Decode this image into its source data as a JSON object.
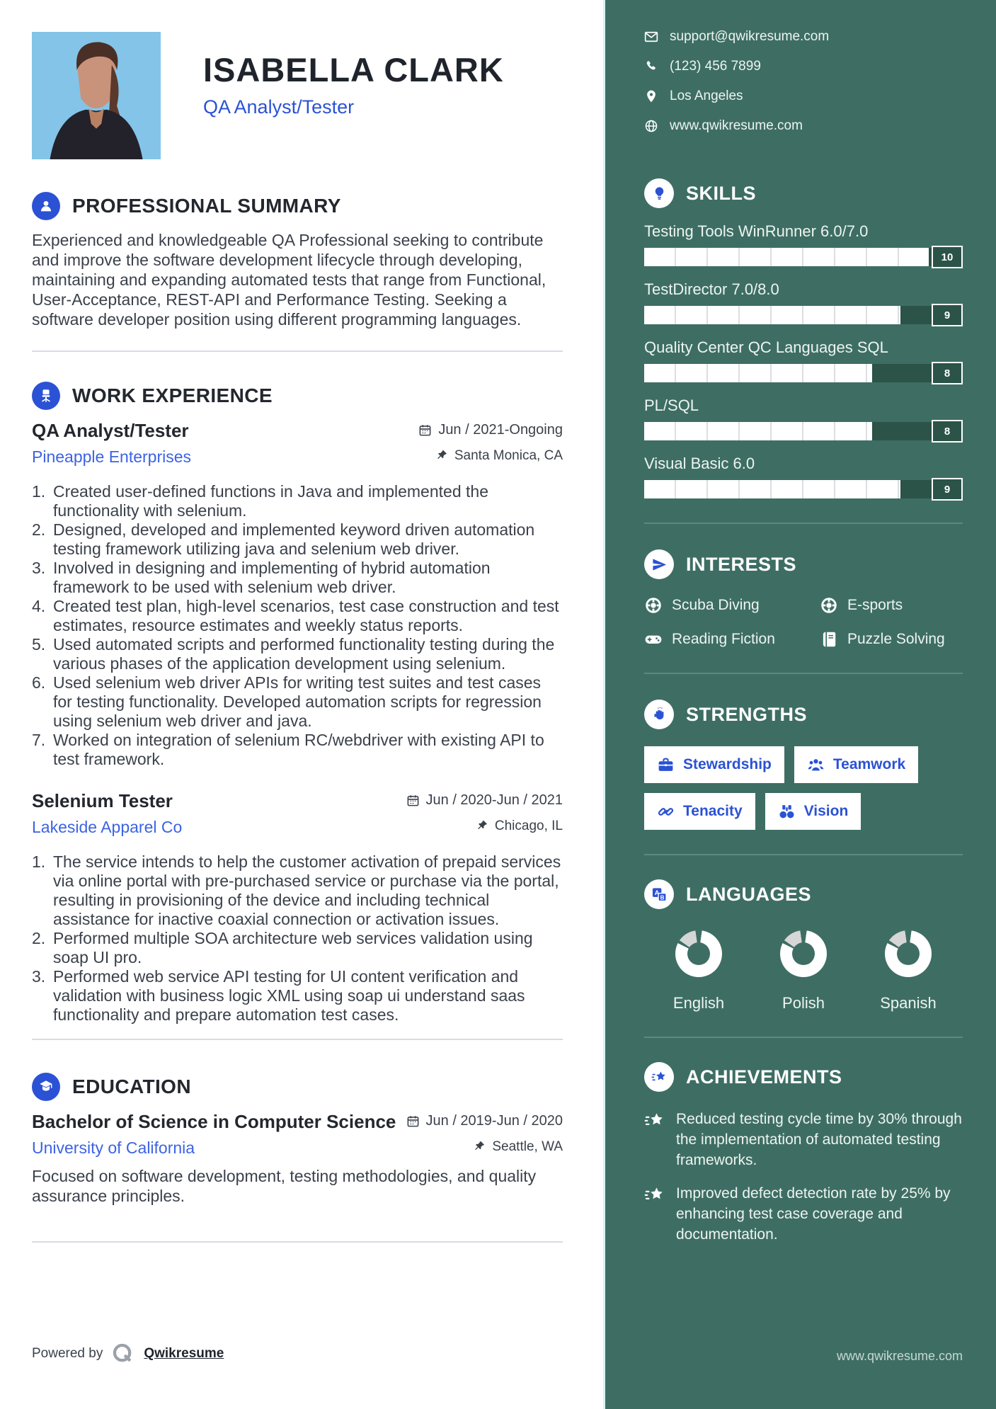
{
  "header": {
    "name": "ISABELLA CLARK",
    "title": "QA Analyst/Tester"
  },
  "summary": {
    "title": "PROFESSIONAL SUMMARY",
    "text": "Experienced and knowledgeable QA Professional seeking to contribute and improve the software development lifecycle through developing, maintaining and expanding automated tests that range from Functional, User-Acceptance, REST-API and Performance Testing. Seeking a software developer position using different programming languages."
  },
  "work": {
    "title": "WORK EXPERIENCE",
    "jobs": [
      {
        "title": "QA Analyst/Tester",
        "company": "Pineapple Enterprises",
        "dates": "Jun / 2021-Ongoing",
        "location": "Santa Monica, CA",
        "bullets": [
          "Created user-defined functions in Java and implemented the functionality with selenium.",
          "Designed, developed and implemented keyword driven automation testing framework utilizing java and selenium web driver.",
          "Involved in designing and implementing of hybrid automation framework to be used with selenium web driver.",
          "Created test plan, high-level scenarios, test case construction and test estimates, resource estimates and weekly status reports.",
          "Used automated scripts and performed functionality testing during the various phases of the application development using selenium.",
          "Used selenium web driver APIs for writing test suites and test cases for testing functionality. Developed automation scripts for regression using selenium web driver and java.",
          "Worked on integration of selenium RC/webdriver with existing API to test framework."
        ]
      },
      {
        "title": "Selenium Tester",
        "company": "Lakeside Apparel Co",
        "dates": "Jun / 2020-Jun / 2021",
        "location": "Chicago, IL",
        "bullets": [
          "The service intends to help the customer activation of prepaid services via online portal with pre-purchased service or purchase via the portal, resulting in provisioning of the device and including technical assistance for inactive coaxial connection or activation issues.",
          "Performed multiple SOA architecture web services validation using soap UI pro.",
          "Performed web service API testing for UI content verification and validation with business logic XML using soap ui understand saas functionality and prepare automation test cases."
        ]
      }
    ]
  },
  "education": {
    "title": "EDUCATION",
    "degree": "Bachelor of Science in Computer Science",
    "school": "University of California",
    "dates": "Jun / 2019-Jun / 2020",
    "location": "Seattle, WA",
    "description": "Focused on software development, testing methodologies, and quality assurance principles."
  },
  "sidebar": {
    "contact": {
      "email": "support@qwikresume.com",
      "phone": "(123) 456 7899",
      "location": "Los Angeles",
      "website": "www.qwikresume.com"
    },
    "skills": {
      "title": "SKILLS",
      "max": 10,
      "items": [
        {
          "name": "Testing Tools WinRunner 6.0/7.0",
          "level": 10
        },
        {
          "name": "TestDirector 7.0/8.0",
          "level": 9
        },
        {
          "name": "Quality Center QC Languages SQL",
          "level": 8
        },
        {
          "name": "PL/SQL",
          "level": 8
        },
        {
          "name": "Visual Basic 6.0",
          "level": 9
        }
      ]
    },
    "interests": {
      "title": "INTERESTS",
      "items": [
        {
          "label": "Scuba Diving",
          "icon": "helm-icon"
        },
        {
          "label": "E-sports",
          "icon": "helm-icon"
        },
        {
          "label": "Reading Fiction",
          "icon": "gamepad-icon"
        },
        {
          "label": "Puzzle Solving",
          "icon": "book-icon"
        }
      ]
    },
    "strengths": {
      "title": "STRENGTHS",
      "items": [
        {
          "label": "Stewardship",
          "icon": "briefcase-icon"
        },
        {
          "label": "Teamwork",
          "icon": "team-icon"
        },
        {
          "label": "Tenacity",
          "icon": "chain-icon"
        },
        {
          "label": "Vision",
          "icon": "binoculars-icon"
        }
      ]
    },
    "languages": {
      "title": "LANGUAGES",
      "items": [
        "English",
        "Polish",
        "Spanish"
      ]
    },
    "achievements": {
      "title": "ACHIEVEMENTS",
      "items": [
        "Reduced testing cycle time by 30% through the implementation of automated testing frameworks.",
        "Improved defect detection rate by 25% by enhancing test case coverage and documentation."
      ]
    },
    "footer_site": "www.qwikresume.com"
  },
  "footer": {
    "powered_by": "Powered by",
    "brand": "Qwikresume"
  },
  "colors": {
    "sidebar_green": "#3e6e63",
    "accent_blue": "#2b52d4",
    "link_blue": "#3c63e4",
    "photo_bg": "#83c4e8"
  }
}
